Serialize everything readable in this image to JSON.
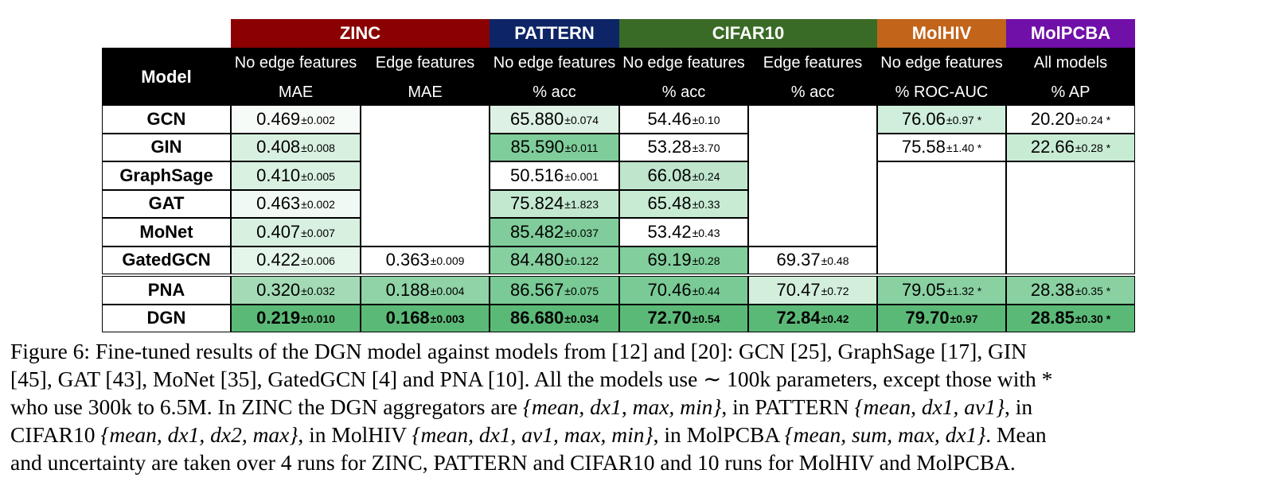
{
  "groups": [
    {
      "name": "ZINC",
      "color": "#8b0000"
    },
    {
      "name": "PATTERN",
      "color": "#0d2566"
    },
    {
      "name": "CIFAR10",
      "color": "#3a6b26"
    },
    {
      "name": "MolHIV",
      "color": "#c2641a"
    },
    {
      "name": "MolPCBA",
      "color": "#7010a8"
    }
  ],
  "header": {
    "model": "Model",
    "columns": [
      {
        "setting": "No edge features",
        "metric": "MAE"
      },
      {
        "setting": "Edge features",
        "metric": "MAE"
      },
      {
        "setting": "No edge features",
        "metric": "% acc"
      },
      {
        "setting": "No edge features",
        "metric": "% acc"
      },
      {
        "setting": "Edge features",
        "metric": "% acc"
      },
      {
        "setting": "No edge features",
        "metric": "% ROC-AUC"
      },
      {
        "setting": "All models",
        "metric": "% AP"
      }
    ]
  },
  "models": [
    "GCN",
    "GIN",
    "GraphSage",
    "GAT",
    "MoNet",
    "GatedGCN",
    "PNA",
    "DGN"
  ],
  "cells": [
    [
      [
        "0.469",
        "±0.002"
      ],
      null,
      [
        "65.880",
        "±0.074"
      ],
      [
        "54.46",
        "±0.10"
      ],
      null,
      [
        "76.06",
        "±0.97 *"
      ],
      [
        "20.20",
        "±0.24 *"
      ]
    ],
    [
      [
        "0.408",
        "±0.008"
      ],
      null,
      [
        "85.590",
        "±0.011"
      ],
      [
        "53.28",
        "±3.70"
      ],
      null,
      [
        "75.58",
        "±1.40 *"
      ],
      [
        "22.66",
        "±0.28 *"
      ]
    ],
    [
      [
        "0.410",
        "±0.005"
      ],
      null,
      [
        "50.516",
        "±0.001"
      ],
      [
        "66.08",
        "±0.24"
      ],
      null,
      null,
      null
    ],
    [
      [
        "0.463",
        "±0.002"
      ],
      null,
      [
        "75.824",
        "±1.823"
      ],
      [
        "65.48",
        "±0.33"
      ],
      null,
      null,
      null
    ],
    [
      [
        "0.407",
        "±0.007"
      ],
      null,
      [
        "85.482",
        "±0.037"
      ],
      [
        "53.42",
        "±0.43"
      ],
      null,
      null,
      null
    ],
    [
      [
        "0.422",
        "±0.006"
      ],
      [
        "0.363",
        "±0.009"
      ],
      [
        "84.480",
        "±0.122"
      ],
      [
        "69.19",
        "±0.28"
      ],
      [
        "69.37",
        "±0.48"
      ],
      null,
      null
    ],
    [
      [
        "0.320",
        "±0.032"
      ],
      [
        "0.188",
        "±0.004"
      ],
      [
        "86.567",
        "±0.075"
      ],
      [
        "70.46",
        "±0.44"
      ],
      [
        "70.47",
        "±0.72"
      ],
      [
        "79.05",
        "±1.32 *"
      ],
      [
        "28.38",
        "±0.35 *"
      ]
    ],
    [
      [
        "0.219",
        "±0.010"
      ],
      [
        "0.168",
        "±0.003"
      ],
      [
        "86.680",
        "±0.034"
      ],
      [
        "72.70",
        "±0.54"
      ],
      [
        "72.84",
        "±0.42"
      ],
      [
        "79.70",
        "±0.97"
      ],
      [
        "28.85",
        "±0.30 *"
      ]
    ]
  ],
  "cell_colors": [
    [
      "#f6fbf7",
      null,
      "#ddf2e4",
      "#ffffff",
      null,
      "#cfeedb",
      "#ffffff"
    ],
    [
      "#d8f0e0",
      null,
      "#7fcd9a",
      "#ffffff",
      null,
      "#ffffff",
      "#c8ebd4"
    ],
    [
      "#d9f1e1",
      null,
      "#ffffff",
      "#bfe6cd",
      null,
      null,
      null
    ],
    [
      "#f0f9f3",
      null,
      "#c3e8d0",
      "#c8eb d4",
      null,
      null,
      null
    ],
    [
      "#d7f0df",
      null,
      "#80cd9b",
      "#ffffff",
      null,
      null,
      null
    ],
    [
      "#e4f5ea",
      "#ffffff",
      "#86cf9f",
      "#82ce9c",
      "#ffffff",
      null,
      null
    ],
    [
      "#a4dbb6",
      "#8fd3a6",
      "#79ca95",
      "#79ca95",
      "#d3efdc",
      "#8ad1a2",
      "#8ad1a2"
    ],
    [
      "#5bb977",
      "#5bb977",
      "#5bb977",
      "#5bb977",
      "#5bb977",
      "#5bb977",
      "#5bb977"
    ]
  ],
  "bold_row": 7,
  "caption": {
    "line1": "Figure 6: Fine-tuned results of the DGN model against models from [12] and [20]: GCN [25], GraphSage [17], GIN",
    "line2": "[45], GAT [43], MoNet [35], GatedGCN [4] and PNA [10]. All the models use ∼ 100k parameters, except those with *",
    "line3_a": "who use 300k to 6.5M. In ZINC the DGN aggregators are ",
    "line3_b": "{mean, dx1, max, min}",
    "line3_c": ", in PATTERN ",
    "line3_d": "{mean, dx1, av1}",
    "line3_e": ", in",
    "line4_a": "CIFAR10 ",
    "line4_b": "{mean, dx1, dx2, max}",
    "line4_c": ", in MolHIV ",
    "line4_d": "{mean, dx1, av1, max, min}",
    "line4_e": ", in MolPCBA ",
    "line4_f": "{mean, sum, max, dx1}",
    "line4_g": ". Mean",
    "line5": "and uncertainty are taken over 4 runs for ZINC, PATTERN and CIFAR10 and 10 runs for MolHIV and MolPCBA."
  }
}
